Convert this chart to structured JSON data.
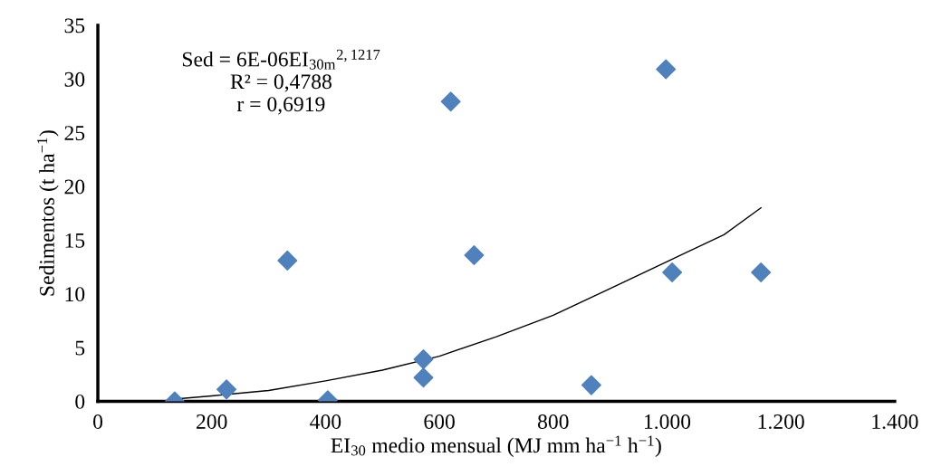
{
  "chart_data": {
    "type": "scatter",
    "xlabel": "EI$_{30}$ medio mensual (MJ mm ha$^{−1}$ h$^{−1}$)",
    "ylabel": "Sedimentos (t ha$^{−1}$)",
    "annotations": [
      "Sed = 6E-06EI$_{30m}$$^{2,1217}$",
      "R² = 0,4788",
      "r = 0,6919"
    ],
    "x": [
      135,
      226,
      333,
      404,
      572,
      572,
      620,
      661,
      867,
      998,
      1009,
      1165
    ],
    "series": [
      {
        "marker": "diamond",
        "color": "#4f81bd",
        "values": [
          0,
          1.1,
          13.1,
          0.1,
          3.9,
          2.2,
          27.9,
          13.6,
          1.5,
          30.9,
          12.0,
          12.0
        ]
      },
      {
        "type": "line",
        "marker": "none",
        "color": "#000000",
        "x": [
          135,
          200,
          300,
          400,
          500,
          600,
          700,
          800,
          900,
          1000,
          1100,
          1165
        ],
        "values": [
          0.2,
          0.5,
          1.0,
          1.9,
          2.9,
          4.2,
          6.0,
          8.0,
          10.5,
          13.0,
          15.5,
          18.0
        ]
      }
    ],
    "xlim": [
      0,
      1400
    ],
    "xticks": [
      0,
      200,
      400,
      600,
      800,
      {
        "value": 1000,
        "label": "1.000"
      },
      {
        "value": 1200,
        "label": "1.200"
      },
      {
        "value": 1400,
        "label": "1.400"
      }
    ],
    "ylim": [
      0,
      35
    ],
    "yticks": [
      0,
      5,
      10,
      15,
      20,
      25,
      30,
      35
    ],
    "grid": false,
    "legend": false
  }
}
